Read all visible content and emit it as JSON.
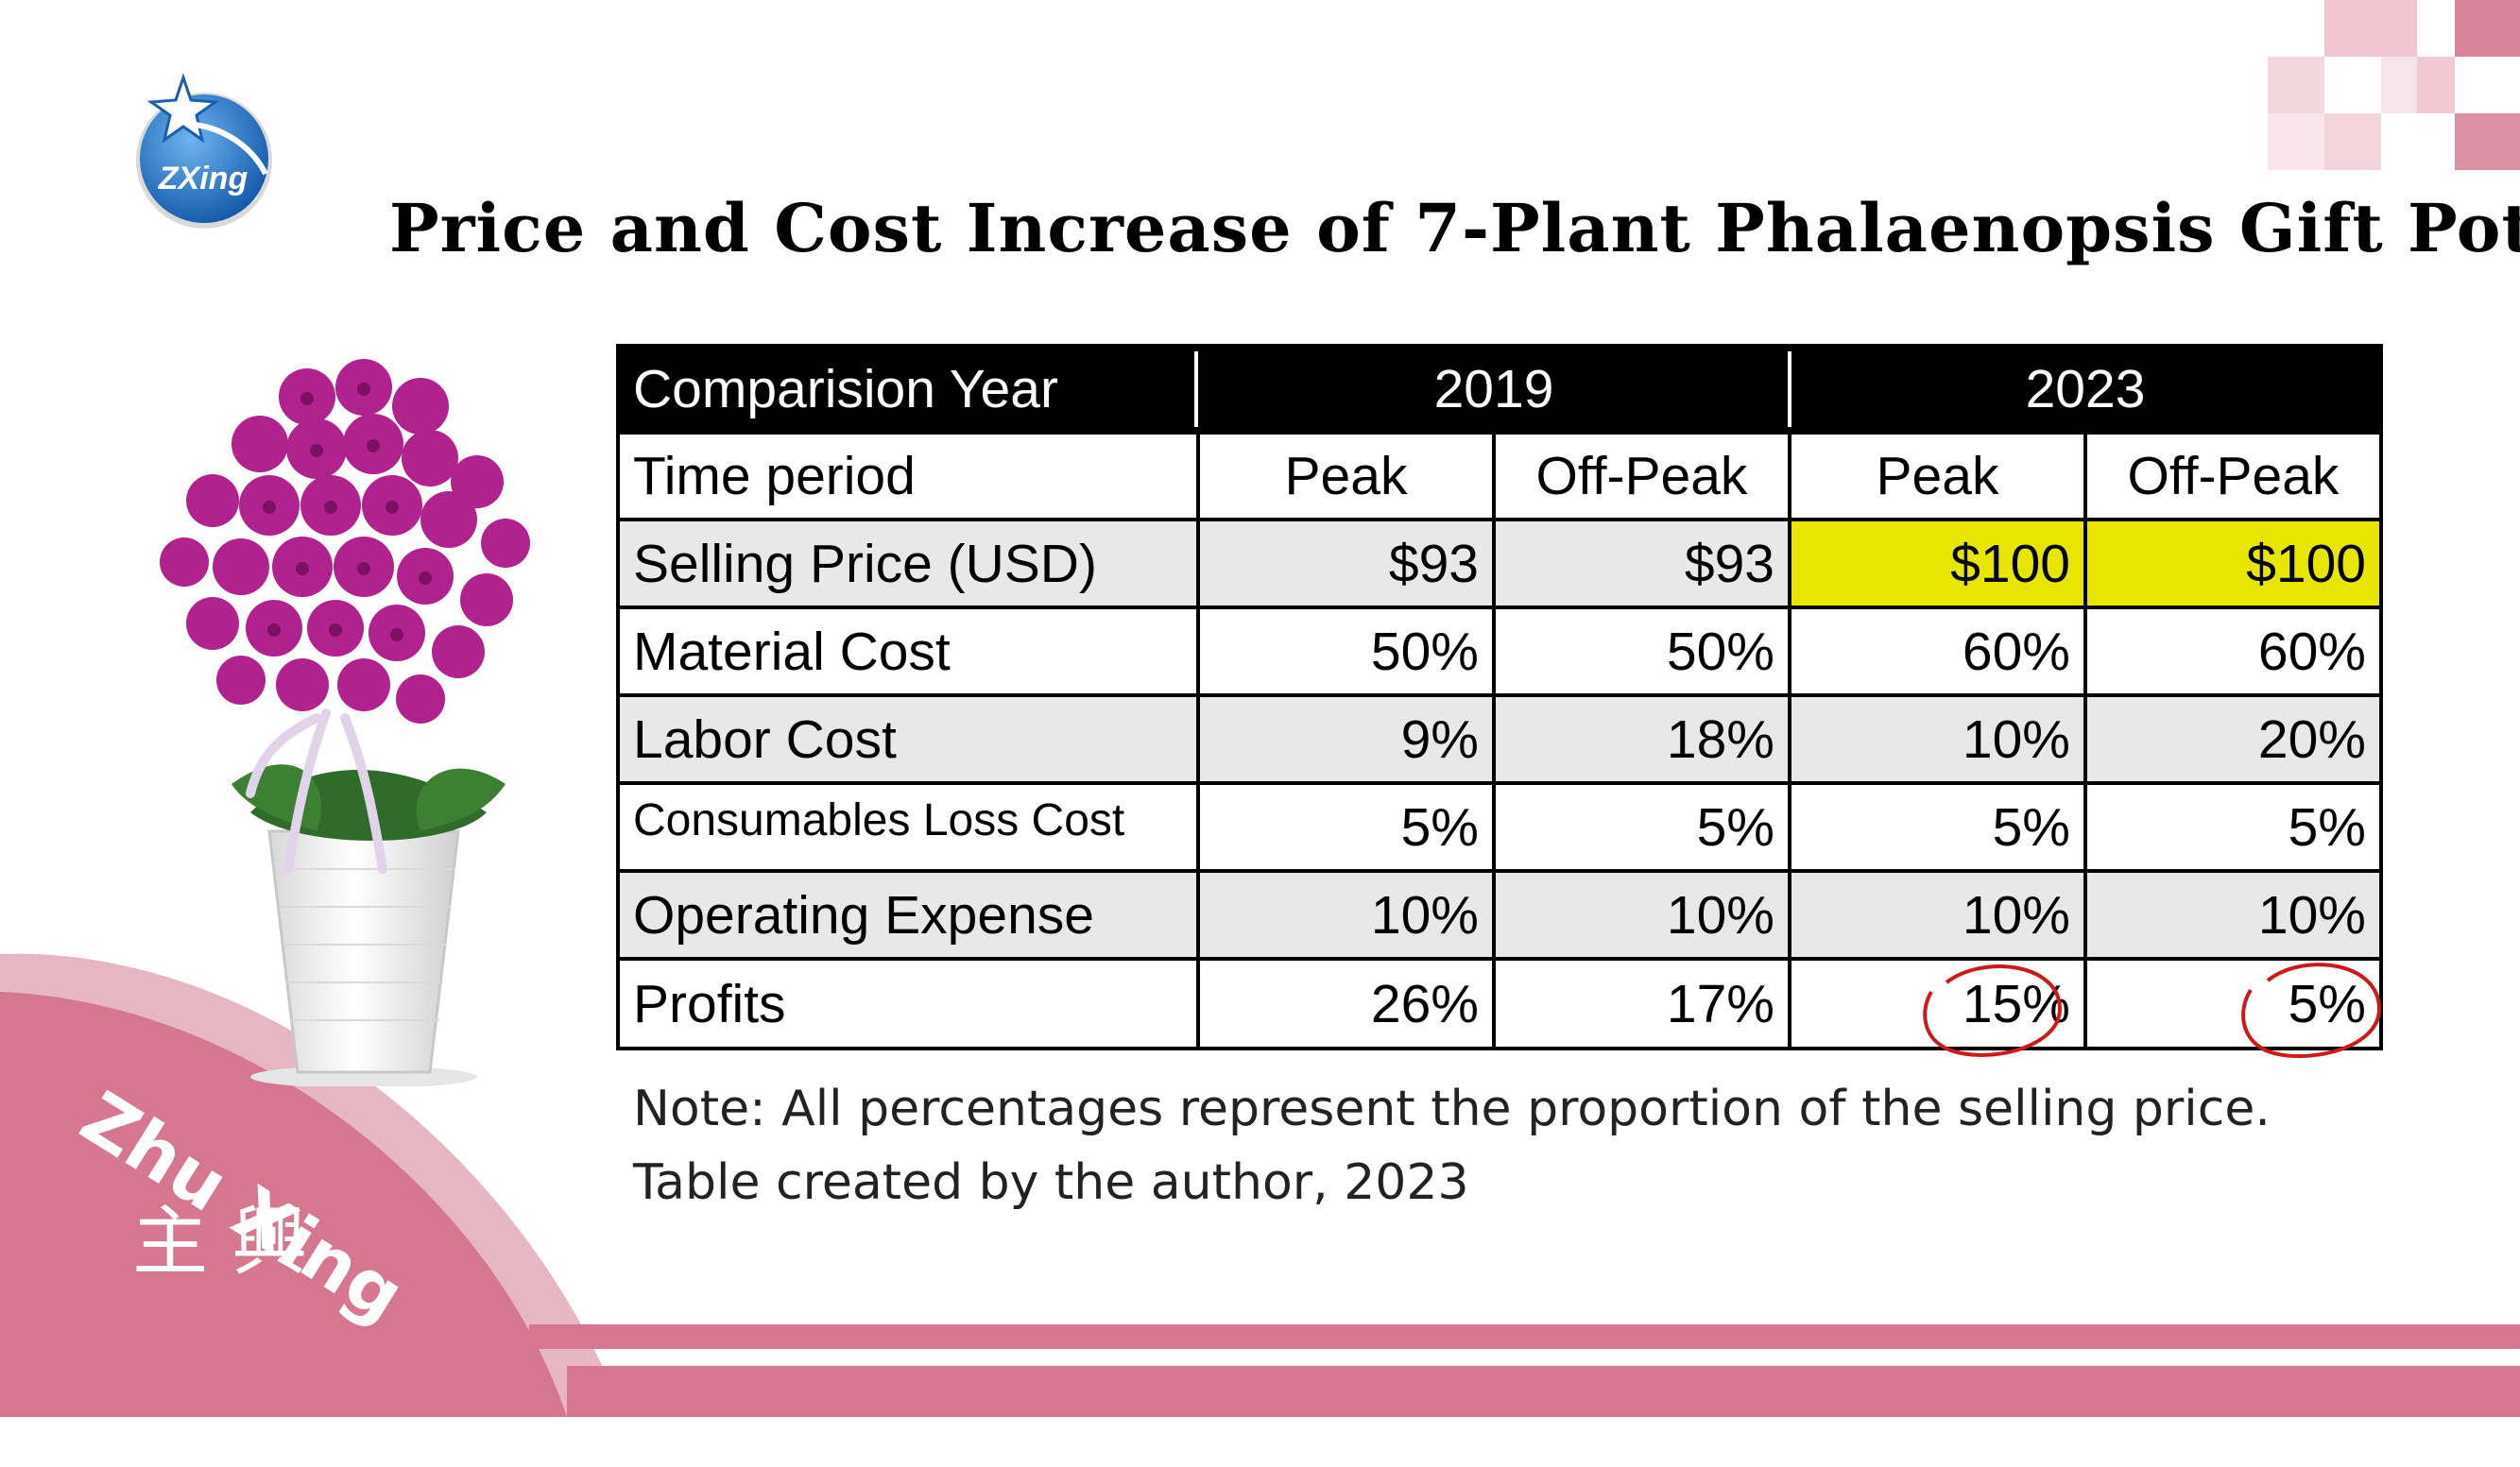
{
  "logo": {
    "text": "ZXing",
    "icon": "star-globe-icon"
  },
  "title": "Price and Cost Increase of 7-Plant Phalaenopsis Gift Pot",
  "table": {
    "header": {
      "label": "Comparision Year",
      "year1": "2019",
      "year2": "2023"
    },
    "subheader": {
      "label": "Time period",
      "cols": [
        "Peak",
        "Off-Peak",
        "Peak",
        "Off-Peak"
      ]
    },
    "rows": [
      {
        "label": "Selling Price (USD)",
        "values": [
          "$93",
          "$93",
          "$100",
          "$100"
        ]
      },
      {
        "label": "Material Cost",
        "values": [
          "50%",
          "50%",
          "60%",
          "60%"
        ]
      },
      {
        "label": "Labor Cost",
        "values": [
          "9%",
          "18%",
          "10%",
          "20%"
        ]
      },
      {
        "label": "Consumables Loss Cost",
        "values": [
          "5%",
          "5%",
          "5%",
          "5%"
        ]
      },
      {
        "label": "Operating Expense",
        "values": [
          "10%",
          "10%",
          "10%",
          "10%"
        ]
      },
      {
        "label": "Profits",
        "values": [
          "26%",
          "17%",
          "15%",
          "5%"
        ]
      }
    ],
    "highlight_color": "#e6e600",
    "circle_color": "#d01818"
  },
  "notes": {
    "line1": "Note: All percentages represent the proportion of the selling price.",
    "line2": "Table created by the author, 2023"
  },
  "brand": {
    "latin": "Zhu Xing",
    "chinese": "主 興"
  },
  "colors": {
    "accent_pink": "#d4778f",
    "light_pink": "#ecc3cf",
    "orchid": "#b0238f"
  }
}
